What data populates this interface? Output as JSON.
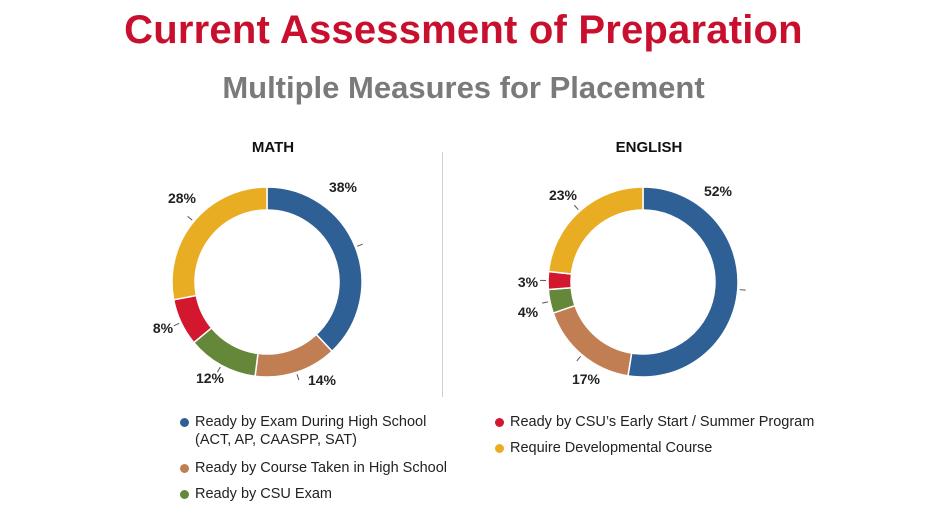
{
  "title": "Current Assessment of Preparation",
  "subtitle": "Multiple Measures for Placement",
  "colors": {
    "exam": "#2e5f95",
    "course": "#c07e52",
    "csu_exam": "#64873a",
    "early_start": "#d2172f",
    "developmental": "#e8ad22"
  },
  "chart_data": [
    {
      "type": "pie",
      "title": "MATH",
      "donut": true,
      "slices": [
        {
          "label": "Ready by Exam During High School (ACT, AP, CAASPP, SAT)",
          "value": 38,
          "display": "38%",
          "color": "#2e5f95"
        },
        {
          "label": "Ready by Course Taken in High School",
          "value": 14,
          "display": "14%",
          "color": "#c07e52"
        },
        {
          "label": "Ready by CSU Exam",
          "value": 12,
          "display": "12%",
          "color": "#64873a"
        },
        {
          "label": "Ready by CSU's Early Start / Summer Program",
          "value": 8,
          "display": "8%",
          "color": "#d2172f"
        },
        {
          "label": "Require Developmental Course",
          "value": 28,
          "display": "28%",
          "color": "#e8ad22"
        }
      ]
    },
    {
      "type": "pie",
      "title": "ENGLISH",
      "donut": true,
      "slices": [
        {
          "label": "Ready by Exam During High School (ACT, AP, CAASPP, SAT)",
          "value": 52,
          "display": "52%",
          "color": "#2e5f95"
        },
        {
          "label": "Ready by Course Taken in High School",
          "value": 17,
          "display": "17%",
          "color": "#c07e52"
        },
        {
          "label": "Ready by CSU Exam",
          "value": 4,
          "display": "4%",
          "color": "#64873a"
        },
        {
          "label": "Ready by CSU's Early Start / Summer Program",
          "value": 3,
          "display": "3%",
          "color": "#d2172f"
        },
        {
          "label": "Require Developmental Course",
          "value": 23,
          "display": "23%",
          "color": "#e8ad22"
        }
      ]
    }
  ],
  "legend": [
    {
      "label": "Ready by Exam During High School\n(ACT, AP, CAASPP, SAT)",
      "color": "#2e5f95"
    },
    {
      "label": "Ready by Course Taken in High School",
      "color": "#c07e52"
    },
    {
      "label": "Ready by CSU Exam",
      "color": "#64873a"
    },
    {
      "label": "Ready by CSU’s Early Start / Summer Program",
      "color": "#d2172f"
    },
    {
      "label": "Require Developmental Course",
      "color": "#e8ad22"
    }
  ]
}
